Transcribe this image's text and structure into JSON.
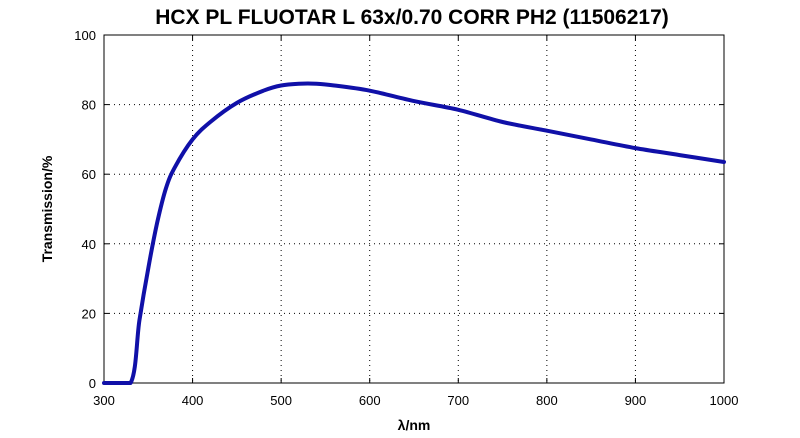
{
  "chart_data": {
    "type": "line",
    "title": "HCX PL FLUOTAR L 63x/0.70 CORR PH2 (11506217)",
    "xlabel": "λ/nm",
    "ylabel": "Transmission/%",
    "xlim": [
      300,
      1000
    ],
    "ylim": [
      0,
      100
    ],
    "xticks": [
      300,
      400,
      500,
      600,
      700,
      800,
      900,
      1000
    ],
    "yticks": [
      0,
      20,
      40,
      60,
      80,
      100
    ],
    "grid": true,
    "legend": "none",
    "series": [
      {
        "color": "#1010a8",
        "x": [
          300,
          330,
          340,
          350,
          360,
          370,
          380,
          400,
          420,
          450,
          480,
          500,
          520,
          540,
          560,
          600,
          650,
          700,
          750,
          800,
          850,
          900,
          950,
          1000
        ],
        "y": [
          0,
          0,
          18,
          33,
          46,
          56,
          62,
          70,
          75,
          80.5,
          84,
          85.5,
          86,
          86,
          85.5,
          84,
          81,
          78.5,
          75,
          72.5,
          70,
          67.5,
          65.5,
          63.5
        ]
      }
    ]
  }
}
